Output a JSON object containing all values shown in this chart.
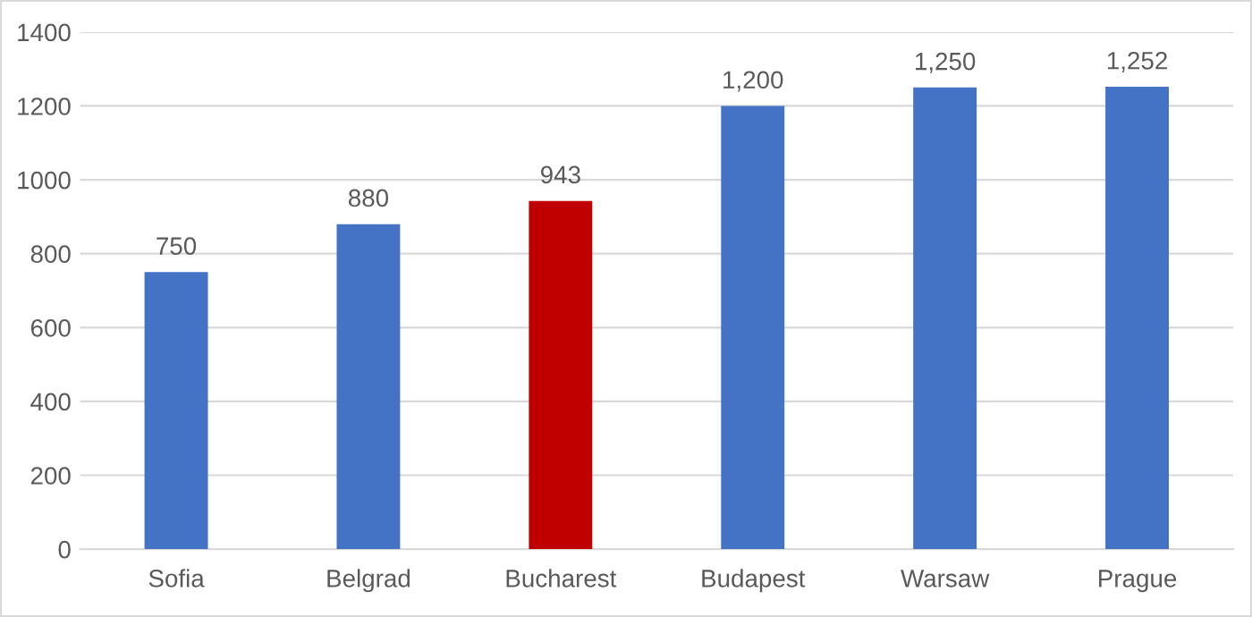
{
  "chart_data": {
    "type": "bar",
    "categories": [
      "Sofia",
      "Belgrad",
      "Bucharest",
      "Budapest",
      "Warsaw",
      "Prague"
    ],
    "values": [
      750,
      880,
      943,
      1200,
      1250,
      1252
    ],
    "colors": [
      "#4472c4",
      "#4472c4",
      "#c00000",
      "#4472c4",
      "#4472c4",
      "#4472c4"
    ],
    "value_labels": [
      "750",
      "880",
      "943",
      "1,200",
      "1,250",
      "1,252"
    ],
    "ylim": [
      0,
      1400
    ],
    "yticks": [
      0,
      200,
      400,
      600,
      800,
      1000,
      1200,
      1400
    ],
    "grid": "y",
    "legend": false
  }
}
